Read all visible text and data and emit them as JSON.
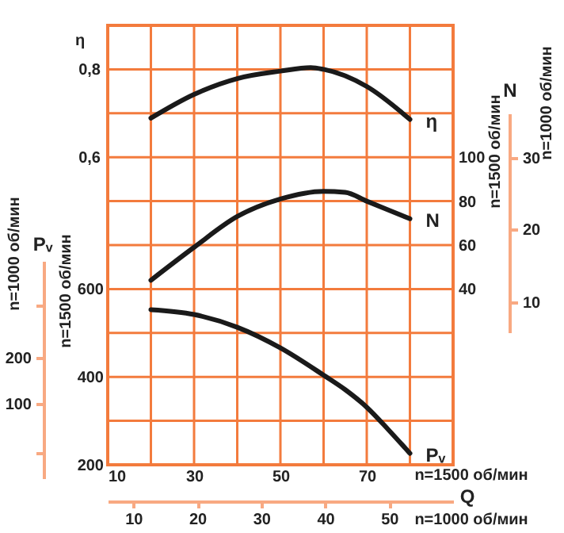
{
  "chart_data": {
    "type": "line",
    "xlabel": "n=1500 об/мин",
    "x2label": "n=1000 об/мин",
    "ylabel": "n=1500 об/мин",
    "y2label": "n=1500 об/мин",
    "y3label": "η",
    "annotations": [
      "Q",
      "Pᵥ",
      "N",
      "n=1000 об/мин",
      "200",
      "100",
      "n=1000 об/мин",
      "30",
      "20",
      "10"
    ],
    "series": [
      {
        "name": "η",
        "color": "#1a1a1a",
        "axis": "y3",
        "x": [
          20,
          30,
          40,
          50,
          57,
          60,
          70,
          80
        ],
        "values": [
          0.689,
          0.743,
          0.779,
          0.796,
          0.804,
          0.8,
          0.761,
          0.686
        ]
      },
      {
        "name": "N",
        "color": "#1a1a1a",
        "axis": "y2",
        "x": [
          20,
          30,
          40,
          50,
          60,
          65,
          70,
          80
        ],
        "values": [
          44,
          59,
          73,
          81,
          84.5,
          84,
          80,
          72
        ]
      },
      {
        "name": "Pᵥ",
        "color": "#1a1a1a",
        "axis": "y",
        "x": [
          20,
          30,
          40,
          50,
          60,
          65,
          70,
          75,
          80
        ],
        "values": [
          553,
          542,
          513,
          466,
          404,
          371,
          331,
          280,
          226
        ]
      }
    ],
    "xlim": [
      10,
      90
    ],
    "xticks": [
      10,
      {
        "value": 20,
        "label": null
      },
      30,
      {
        "value": 40,
        "label": null
      },
      50,
      {
        "value": 60,
        "label": null
      },
      70,
      {
        "value": 80,
        "label": null
      }
    ],
    "x2lim": [
      6,
      60
    ],
    "x2ticks": [
      10,
      20,
      30,
      40,
      50
    ],
    "ylim": [
      200,
      1200
    ],
    "yticks": [
      200,
      {
        "value": 300,
        "label": null
      },
      400,
      {
        "value": 500,
        "label": null
      },
      600,
      {
        "value": 700,
        "label": null
      },
      {
        "value": 800,
        "label": null
      },
      {
        "value": 900,
        "label": null
      },
      {
        "value": 1000,
        "label": null
      },
      {
        "value": 1100,
        "label": null
      }
    ],
    "y2lim": [
      -40,
      160
    ],
    "y2ticks": [
      40,
      60,
      80,
      100
    ],
    "y3lim": [
      -0.1,
      0.9
    ],
    "y3ticks": [
      {
        "value": 0.6,
        "label": "0,6"
      },
      {
        "value": 0.8,
        "label": "0,8"
      }
    ],
    "grid": true,
    "marker": "none",
    "line_style": "solid"
  }
}
